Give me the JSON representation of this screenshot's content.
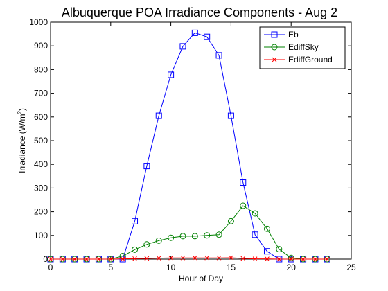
{
  "chart_data": {
    "type": "line",
    "title": "Albuquerque POA Irradiance Components - Aug 2",
    "xlabel": "Hour of Day",
    "ylabel_main": "Irradiance (W/m",
    "ylabel_sup": "2",
    "ylabel_close": ")",
    "xlim": [
      0,
      25
    ],
    "ylim": [
      0,
      1000
    ],
    "xticks": [
      0,
      5,
      10,
      15,
      20,
      25
    ],
    "yticks": [
      0,
      100,
      200,
      300,
      400,
      500,
      600,
      700,
      800,
      900,
      1000
    ],
    "grid": false,
    "legend_position": "top-right",
    "x": [
      0,
      1,
      2,
      3,
      4,
      5,
      6,
      7,
      8,
      9,
      10,
      11,
      12,
      13,
      14,
      15,
      16,
      17,
      18,
      19,
      20,
      21,
      22,
      23
    ],
    "series": [
      {
        "name": "Eb",
        "color": "#0000ff",
        "marker": "square",
        "values": [
          0,
          0,
          0,
          0,
          0,
          0,
          0,
          160,
          393,
          605,
          778,
          898,
          955,
          938,
          860,
          605,
          323,
          103,
          33,
          0,
          0,
          0,
          0,
          0
        ]
      },
      {
        "name": "EdiffSky",
        "color": "#008000",
        "marker": "circle",
        "values": [
          0,
          0,
          0,
          0,
          0,
          0,
          13,
          40,
          62,
          78,
          90,
          97,
          97,
          100,
          103,
          160,
          225,
          193,
          128,
          42,
          5,
          0,
          0,
          0
        ]
      },
      {
        "name": "EdiffGround",
        "color": "#ff0000",
        "marker": "x",
        "values": [
          0,
          0,
          0,
          0,
          0,
          0,
          1,
          2,
          3,
          4,
          5,
          5,
          5,
          5,
          5,
          6,
          3,
          1,
          1,
          0,
          0,
          0,
          0,
          0
        ]
      }
    ]
  }
}
